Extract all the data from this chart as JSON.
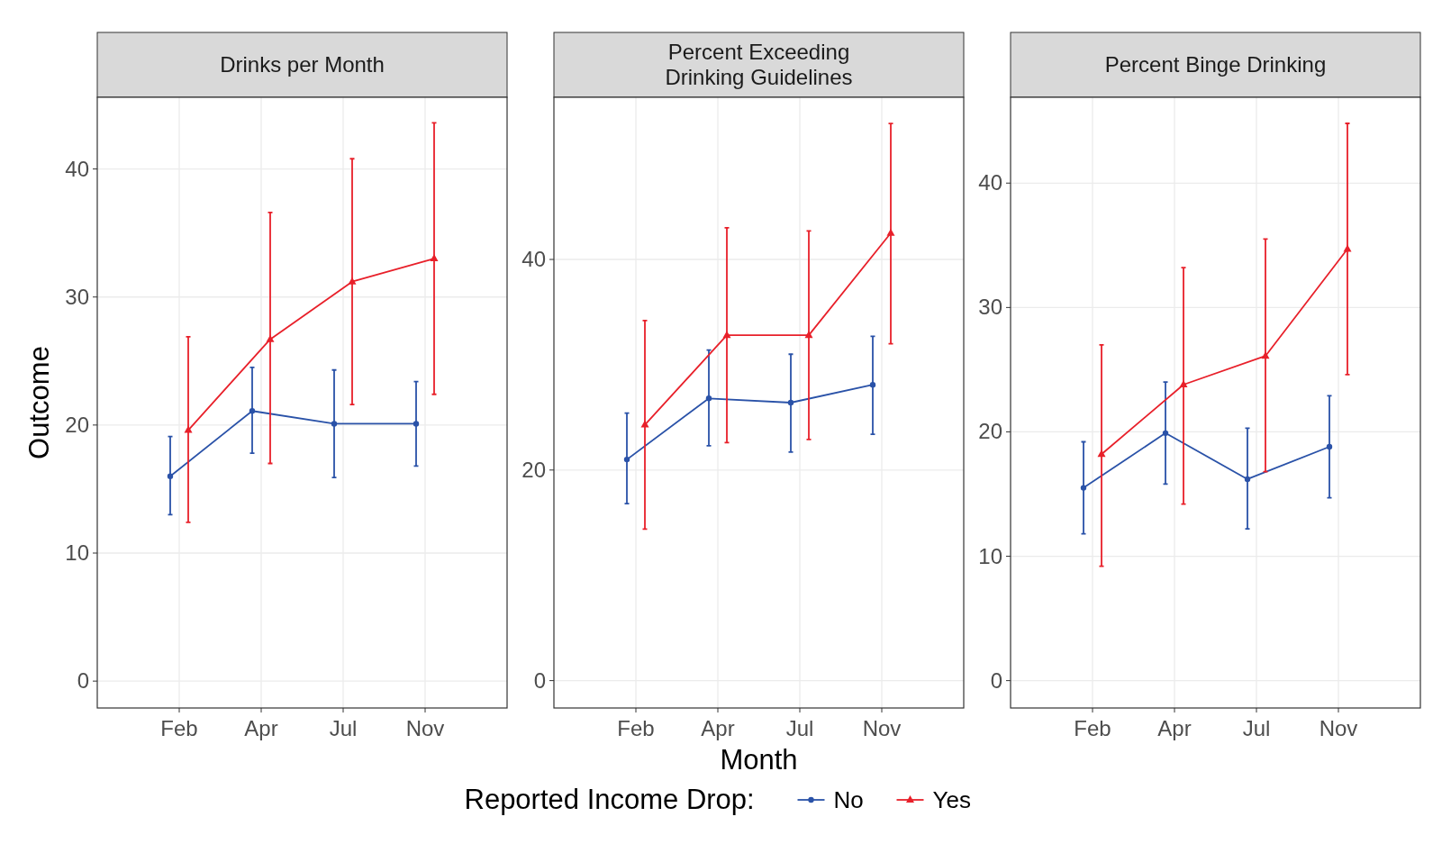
{
  "chart_data": [
    {
      "type": "line",
      "title": "Drinks per Month",
      "ylabel": "Outcome",
      "categories": [
        "Feb",
        "Apr",
        "Jul",
        "Nov"
      ],
      "ylim": [
        -2.1,
        45.6
      ],
      "yticks": [
        0,
        10,
        20,
        30,
        40
      ],
      "grid": true,
      "legend": false,
      "series": [
        {
          "color": "#2a52a8",
          "marker": "circle",
          "values": [
            16.0,
            21.1,
            20.1,
            20.1
          ],
          "errors": [
            [
              13.0,
              19.1
            ],
            [
              17.8,
              24.5
            ],
            [
              15.9,
              24.3
            ],
            [
              16.8,
              23.4
            ]
          ]
        },
        {
          "color": "#e8202a",
          "marker": "triangle",
          "values": [
            19.6,
            26.7,
            31.2,
            33.0
          ],
          "errors": [
            [
              12.4,
              26.9
            ],
            [
              17.0,
              36.6
            ],
            [
              21.6,
              40.8
            ],
            [
              22.4,
              43.6
            ]
          ]
        }
      ]
    },
    {
      "type": "line",
      "title": "Percent Exceeding\nDrinking Guidelines",
      "xlabel": "Month",
      "legend_title": "Reported Income Drop:",
      "categories": [
        "Feb",
        "Apr",
        "Jul",
        "Nov"
      ],
      "ylim": [
        -2.6,
        55.4
      ],
      "yticks": [
        0,
        20,
        40
      ],
      "grid": true,
      "legend": "bottom",
      "series": [
        {
          "name": "No",
          "color": "#2a52a8",
          "marker": "circle",
          "values": [
            21.0,
            26.8,
            26.4,
            28.1
          ],
          "errors": [
            [
              16.8,
              25.4
            ],
            [
              22.3,
              31.4
            ],
            [
              21.7,
              31.0
            ],
            [
              23.4,
              32.7
            ]
          ]
        },
        {
          "name": "Yes",
          "color": "#e8202a",
          "marker": "triangle",
          "values": [
            24.3,
            32.8,
            32.8,
            42.5
          ],
          "errors": [
            [
              14.4,
              34.2
            ],
            [
              22.6,
              43.0
            ],
            [
              22.9,
              42.7
            ],
            [
              32.0,
              52.9
            ]
          ]
        }
      ]
    },
    {
      "type": "line",
      "title": "Percent Binge Drinking",
      "categories": [
        "Feb",
        "Apr",
        "Jul",
        "Nov"
      ],
      "ylim": [
        -2.2,
        46.9
      ],
      "yticks": [
        0,
        10,
        20,
        30,
        40
      ],
      "grid": true,
      "legend": false,
      "series": [
        {
          "color": "#2a52a8",
          "marker": "circle",
          "values": [
            15.5,
            19.9,
            16.2,
            18.8
          ],
          "errors": [
            [
              11.8,
              19.2
            ],
            [
              15.8,
              24.0
            ],
            [
              12.2,
              20.3
            ],
            [
              14.7,
              22.9
            ]
          ]
        },
        {
          "color": "#e8202a",
          "marker": "triangle",
          "values": [
            18.2,
            23.8,
            26.1,
            34.7
          ],
          "errors": [
            [
              9.2,
              27.0
            ],
            [
              14.2,
              33.2
            ],
            [
              16.8,
              35.5
            ],
            [
              24.6,
              44.8
            ]
          ]
        }
      ]
    }
  ]
}
